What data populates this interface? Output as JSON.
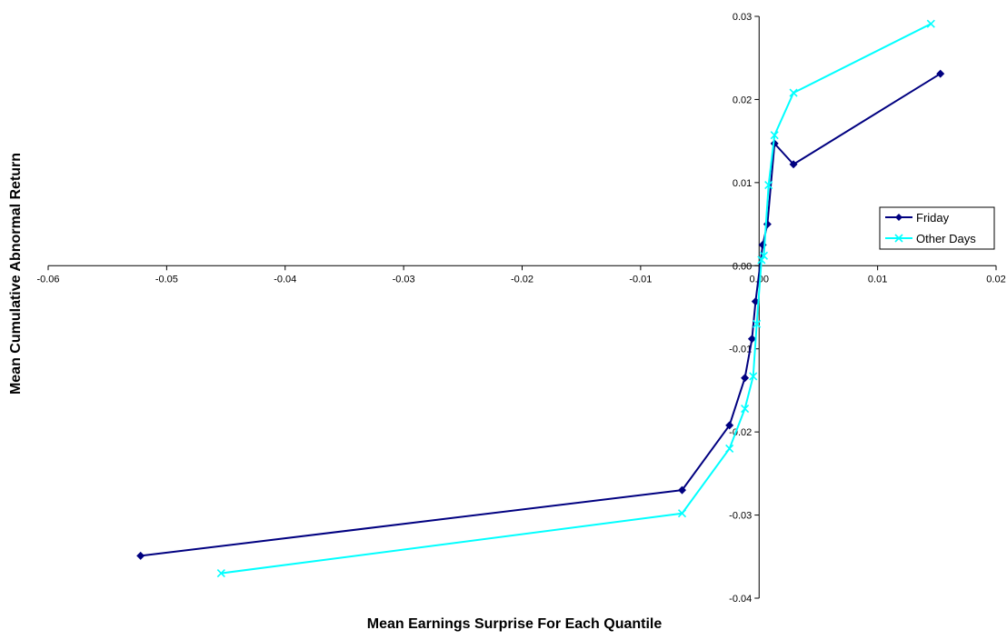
{
  "chart_data": {
    "type": "scatter",
    "title": "",
    "xlabel": "Mean Earnings Surprise For Each Quantile",
    "ylabel": "Mean Cumulative Abnormal Return",
    "xlim": [
      -0.06,
      0.02
    ],
    "ylim": [
      -0.04,
      0.03
    ],
    "x_ticks": [
      -0.06,
      -0.05,
      -0.04,
      -0.03,
      -0.02,
      -0.01,
      0,
      0.01,
      0.02
    ],
    "x_tick_labels": [
      "-0.06",
      "-0.05",
      "-0.04",
      "-0.03",
      "-0.02",
      "-0.01",
      "0.00",
      "0.01",
      "0.02"
    ],
    "y_ticks": [
      -0.04,
      -0.03,
      -0.02,
      -0.01,
      0,
      0.01,
      0.02,
      0.03
    ],
    "y_tick_labels": [
      "-0.04",
      "-0.03",
      "-0.02",
      "-0.01",
      "0.00",
      "0.01",
      "0.02",
      "0.03"
    ],
    "grid": false,
    "legend_position": "right",
    "series": [
      {
        "name": "Friday",
        "color": "#000080",
        "marker": "diamond",
        "x": [
          -0.0522,
          -0.0065,
          -0.0025,
          -0.0012,
          -0.0006,
          -0.0003,
          0.0003,
          0.0007,
          0.0013,
          0.0029,
          0.0153
        ],
        "y": [
          -0.0349,
          -0.027,
          -0.0192,
          -0.0135,
          -0.0088,
          -0.0043,
          0.0025,
          0.005,
          0.0147,
          0.0122,
          0.0231
        ]
      },
      {
        "name": "Other Days",
        "color": "#00ffff",
        "marker": "x",
        "x": [
          -0.0454,
          -0.0065,
          -0.0025,
          -0.0012,
          -0.0005,
          -0.0002,
          0.0002,
          0.0004,
          0.0008,
          0.0013,
          0.0029,
          0.0145
        ],
        "y": [
          -0.037,
          -0.0298,
          -0.022,
          -0.0172,
          -0.0133,
          -0.007,
          0.0007,
          0.0012,
          0.0097,
          0.0157,
          0.0208,
          0.0291
        ]
      }
    ]
  }
}
